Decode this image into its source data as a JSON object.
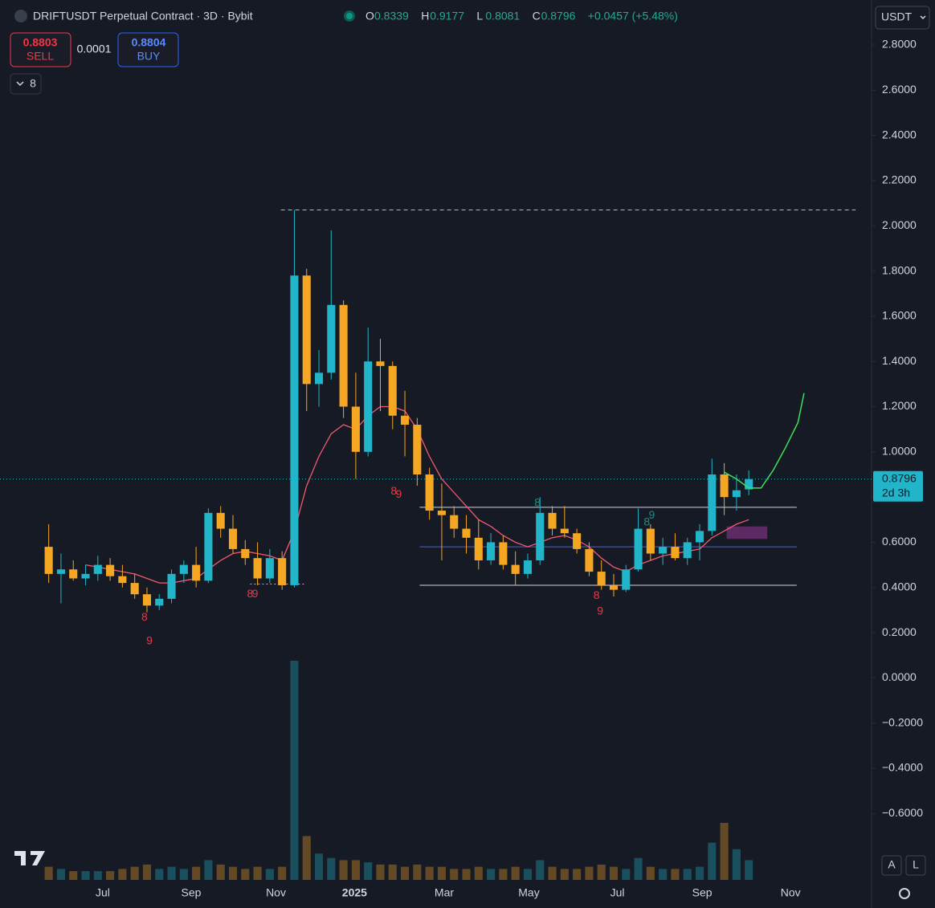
{
  "chart_data": {
    "type": "candlestick",
    "title": "DRIFTUSDT Perpetual Contract · 3D · Bybit",
    "ohlc_letters": [
      "O",
      "H",
      "L",
      "C"
    ],
    "change": "+0.0457 (+5.48%)",
    "currency": "USDT",
    "countdown": "2d 3h",
    "up_color": "#22b4c8",
    "down_color": "#f5a623",
    "candles": [
      [
        0.58,
        0.68,
        0.42,
        0.46
      ],
      [
        0.46,
        0.55,
        0.33,
        0.48
      ],
      [
        0.48,
        0.52,
        0.43,
        0.44
      ],
      [
        0.44,
        0.5,
        0.41,
        0.46
      ],
      [
        0.46,
        0.54,
        0.43,
        0.5
      ],
      [
        0.5,
        0.53,
        0.43,
        0.45
      ],
      [
        0.45,
        0.5,
        0.4,
        0.42
      ],
      [
        0.42,
        0.46,
        0.35,
        0.37
      ],
      [
        0.37,
        0.4,
        0.29,
        0.32
      ],
      [
        0.32,
        0.37,
        0.3,
        0.35
      ],
      [
        0.35,
        0.48,
        0.33,
        0.46
      ],
      [
        0.46,
        0.52,
        0.42,
        0.5
      ],
      [
        0.5,
        0.58,
        0.4,
        0.43
      ],
      [
        0.43,
        0.75,
        0.42,
        0.73
      ],
      [
        0.73,
        0.76,
        0.62,
        0.66
      ],
      [
        0.66,
        0.72,
        0.55,
        0.57
      ],
      [
        0.57,
        0.61,
        0.5,
        0.53
      ],
      [
        0.53,
        0.6,
        0.41,
        0.44
      ],
      [
        0.44,
        0.57,
        0.42,
        0.53
      ],
      [
        0.53,
        0.56,
        0.39,
        0.41
      ],
      [
        0.41,
        2.07,
        0.4,
        1.78
      ],
      [
        1.78,
        1.81,
        1.18,
        1.3
      ],
      [
        1.3,
        1.45,
        1.2,
        1.35
      ],
      [
        1.35,
        1.98,
        1.32,
        1.65
      ],
      [
        1.65,
        1.67,
        1.15,
        1.2
      ],
      [
        1.2,
        1.35,
        0.88,
        1.0
      ],
      [
        1.0,
        1.55,
        0.98,
        1.4
      ],
      [
        1.4,
        1.5,
        1.18,
        1.38
      ],
      [
        1.38,
        1.4,
        1.1,
        1.16
      ],
      [
        1.16,
        1.27,
        0.98,
        1.12
      ],
      [
        1.12,
        1.15,
        0.85,
        0.9
      ],
      [
        0.9,
        0.93,
        0.7,
        0.74
      ],
      [
        0.74,
        0.86,
        0.52,
        0.72
      ],
      [
        0.72,
        0.76,
        0.62,
        0.66
      ],
      [
        0.66,
        0.72,
        0.55,
        0.62
      ],
      [
        0.62,
        0.7,
        0.48,
        0.52
      ],
      [
        0.52,
        0.64,
        0.5,
        0.6
      ],
      [
        0.6,
        0.63,
        0.48,
        0.5
      ],
      [
        0.5,
        0.56,
        0.41,
        0.46
      ],
      [
        0.46,
        0.55,
        0.44,
        0.52
      ],
      [
        0.52,
        0.8,
        0.5,
        0.73
      ],
      [
        0.73,
        0.76,
        0.63,
        0.66
      ],
      [
        0.66,
        0.76,
        0.62,
        0.64
      ],
      [
        0.64,
        0.66,
        0.55,
        0.57
      ],
      [
        0.57,
        0.6,
        0.45,
        0.47
      ],
      [
        0.47,
        0.52,
        0.39,
        0.41
      ],
      [
        0.41,
        0.46,
        0.36,
        0.39
      ],
      [
        0.39,
        0.5,
        0.38,
        0.48
      ],
      [
        0.48,
        0.75,
        0.47,
        0.66
      ],
      [
        0.66,
        0.68,
        0.52,
        0.55
      ],
      [
        0.55,
        0.62,
        0.5,
        0.58
      ],
      [
        0.58,
        0.64,
        0.52,
        0.53
      ],
      [
        0.53,
        0.62,
        0.5,
        0.6
      ],
      [
        0.6,
        0.68,
        0.52,
        0.65
      ],
      [
        0.65,
        0.97,
        0.63,
        0.9
      ],
      [
        0.9,
        0.95,
        0.72,
        0.8
      ],
      [
        0.8,
        0.9,
        0.74,
        0.83
      ],
      [
        0.8339,
        0.9177,
        0.8081,
        0.8796
      ]
    ],
    "volume": [
      6,
      5,
      4,
      4,
      4,
      4,
      5,
      6,
      7,
      5,
      6,
      5,
      6,
      9,
      7,
      6,
      5,
      6,
      5,
      6,
      100,
      20,
      12,
      10,
      9,
      9,
      8,
      7,
      7,
      6,
      7,
      6,
      6,
      5,
      5,
      6,
      5,
      5,
      6,
      5,
      9,
      6,
      5,
      5,
      6,
      7,
      6,
      5,
      10,
      6,
      5,
      5,
      5,
      6,
      17,
      26,
      14,
      9
    ],
    "vlim": [
      0,
      100
    ],
    "ma": {
      "color": "#f05a6e",
      "values": [
        null,
        null,
        null,
        0.5,
        0.49,
        0.48,
        0.47,
        0.46,
        0.44,
        0.42,
        0.42,
        0.43,
        0.44,
        0.48,
        0.52,
        0.55,
        0.56,
        0.55,
        0.54,
        0.52,
        0.65,
        0.85,
        0.98,
        1.08,
        1.12,
        1.1,
        1.16,
        1.2,
        1.2,
        1.18,
        1.1,
        0.98,
        0.88,
        0.82,
        0.76,
        0.7,
        0.67,
        0.63,
        0.6,
        0.58,
        0.6,
        0.62,
        0.63,
        0.61,
        0.58,
        0.53,
        0.49,
        0.47,
        0.5,
        0.52,
        0.54,
        0.55,
        0.56,
        0.57,
        0.62,
        0.65,
        0.68,
        0.7
      ]
    },
    "projection": {
      "color": "#3fe05a",
      "x": [
        55.5,
        56.5,
        57.5,
        58.5,
        59.5,
        60.5,
        61.5,
        62
      ],
      "values": [
        0.91,
        0.88,
        0.84,
        0.84,
        0.92,
        1.02,
        1.13,
        1.26
      ]
    },
    "levels": [
      {
        "value": 2.07,
        "from": 19.4,
        "to": 66.2,
        "color": "#b2b5be",
        "style": "dashed"
      },
      {
        "value": 0.755,
        "from": 30.7,
        "to": 61.4,
        "color": "#d1d4dc",
        "style": "solid"
      },
      {
        "value": 0.58,
        "from": 30.7,
        "to": 61.4,
        "color": "#4a5fd8",
        "style": "solid"
      },
      {
        "value": 0.41,
        "from": 30.7,
        "to": 61.4,
        "color": "#d1d4dc",
        "style": "solid"
      },
      {
        "value": 0.415,
        "from": 16.9,
        "to": 21.4,
        "color": "#b2b5be",
        "style": "dotted"
      }
    ],
    "zones": [
      {
        "bottom": 0.615,
        "top": 0.67,
        "start": 55.7,
        "end": 59.0,
        "color": "#6a2f6e"
      }
    ],
    "annotations": [
      {
        "text": "8",
        "x": 8.3,
        "y": 0.266,
        "color": "#f23645"
      },
      {
        "text": "9",
        "x": 8.7,
        "y": 0.162,
        "color": "#f23645"
      },
      {
        "text": "8",
        "x": 16.9,
        "y": 0.37,
        "color": "#f23645"
      },
      {
        "text": "9",
        "x": 17.3,
        "y": 0.37,
        "color": "#f23645"
      },
      {
        "text": "8",
        "x": 28.6,
        "y": 0.825,
        "color": "#f23645"
      },
      {
        "text": "9",
        "x": 29.0,
        "y": 0.81,
        "color": "#f23645"
      },
      {
        "text": "8",
        "x": 40.3,
        "y": 0.773,
        "color": "#089981"
      },
      {
        "text": "8",
        "x": 45.1,
        "y": 0.362,
        "color": "#f23645"
      },
      {
        "text": "9",
        "x": 45.4,
        "y": 0.293,
        "color": "#f23645"
      },
      {
        "text": "8",
        "x": 49.2,
        "y": 0.687,
        "color": "#089981"
      },
      {
        "text": "9",
        "x": 49.6,
        "y": 0.718,
        "color": "#089981"
      }
    ],
    "xlim": [
      0,
      62
    ],
    "xticks": [
      {
        "value": 4.9,
        "label": "Jul"
      },
      {
        "value": 12.1,
        "label": "Sep"
      },
      {
        "value": 19.0,
        "label": "Nov"
      },
      {
        "value": 25.4,
        "label": "2025"
      },
      {
        "value": 32.7,
        "label": "Mar"
      },
      {
        "value": 39.6,
        "label": "May"
      },
      {
        "value": 46.8,
        "label": "Jul"
      },
      {
        "value": 53.7,
        "label": "Sep"
      },
      {
        "value": 60.9,
        "label": "Nov"
      }
    ],
    "ylim": [
      -0.7,
      2.8
    ],
    "yticks": [
      {
        "value": 2.8,
        "label": "2.8000"
      },
      {
        "value": 2.6,
        "label": "2.6000"
      },
      {
        "value": 2.4,
        "label": "2.4000"
      },
      {
        "value": 2.2,
        "label": "2.2000"
      },
      {
        "value": 2.0,
        "label": "2.0000"
      },
      {
        "value": 1.8,
        "label": "1.8000"
      },
      {
        "value": 1.6,
        "label": "1.6000"
      },
      {
        "value": 1.4,
        "label": "1.4000"
      },
      {
        "value": 1.2,
        "label": "1.2000"
      },
      {
        "value": 1.0,
        "label": "1.0000"
      },
      {
        "value": 0.8,
        "label": "0.8000"
      },
      {
        "value": 0.6,
        "label": "0.6000"
      },
      {
        "value": 0.4,
        "label": "0.4000"
      },
      {
        "value": 0.2,
        "label": "0.2000"
      },
      {
        "value": 0,
        "label": "0.0000"
      },
      {
        "value": -0.2,
        "label": "−0.2000"
      },
      {
        "value": -0.4,
        "label": "−0.4000"
      },
      {
        "value": -0.6,
        "label": "−0.6000"
      }
    ],
    "grid": false
  },
  "ui": {
    "sell_price": "0.8803",
    "sell": "SELL",
    "spread": "0.0001",
    "buy_price": "0.8804",
    "buy": "BUY",
    "indicators": "8",
    "auto": "A",
    "log": "L"
  }
}
